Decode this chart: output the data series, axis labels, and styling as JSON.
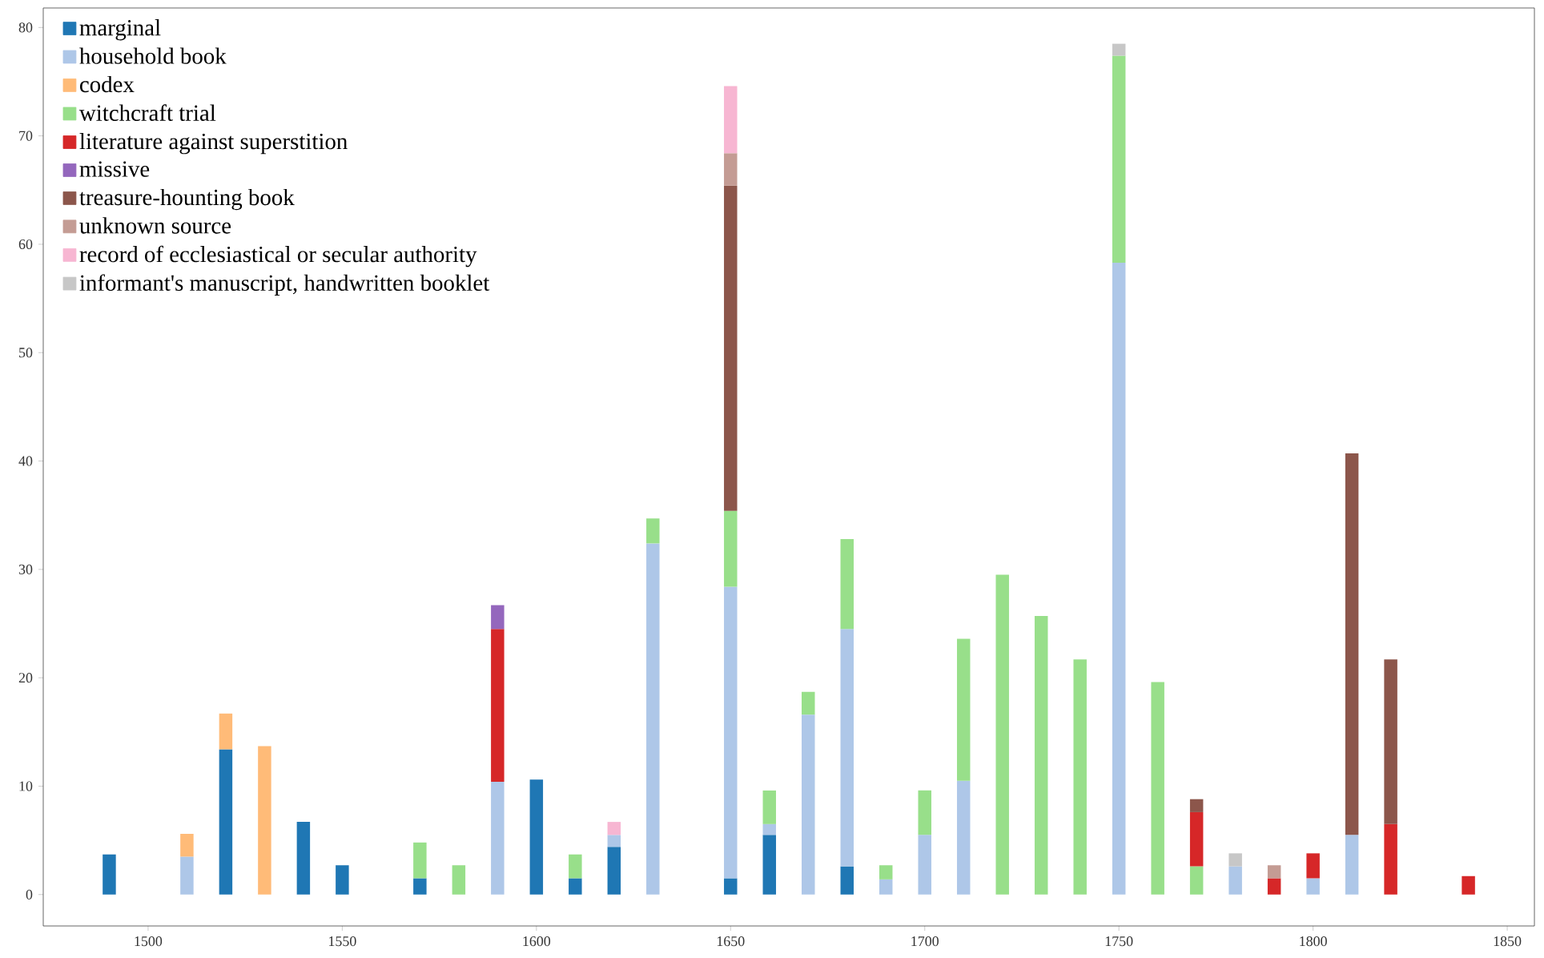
{
  "chart_data": {
    "type": "bar",
    "stacked": true,
    "legend": "top left",
    "x": [
      1490,
      1510,
      1520,
      1530,
      1540,
      1550,
      1570,
      1580,
      1590,
      1600,
      1610,
      1620,
      1630,
      1650,
      1660,
      1670,
      1680,
      1690,
      1700,
      1710,
      1720,
      1730,
      1740,
      1750,
      1760,
      1770,
      1780,
      1790,
      1800,
      1810,
      1820,
      1840
    ],
    "xlim": [
      1473,
      1857
    ],
    "xticks": [
      1500,
      1550,
      1600,
      1650,
      1700,
      1750,
      1800,
      1850
    ],
    "ylim": [
      -2.9,
      81.8
    ],
    "yticks": [
      0,
      10,
      20,
      30,
      40,
      50,
      60,
      70,
      80
    ],
    "series": [
      {
        "name": "marginal",
        "color": "#1f77b4",
        "values": [
          3.7,
          null,
          13.4,
          null,
          6.7,
          2.7,
          1.5,
          null,
          null,
          10.6,
          1.5,
          4.4,
          null,
          1.5,
          5.5,
          null,
          2.6,
          null,
          null,
          null,
          null,
          null,
          null,
          null,
          null,
          null,
          null,
          null,
          null,
          null,
          null,
          null
        ]
      },
      {
        "name": "household book",
        "color": "#aec7e8",
        "values": [
          null,
          3.5,
          null,
          null,
          null,
          null,
          null,
          null,
          10.4,
          null,
          null,
          1.1,
          32.4,
          26.9,
          1.0,
          16.6,
          21.9,
          1.4,
          5.5,
          10.5,
          null,
          null,
          null,
          58.3,
          null,
          null,
          2.6,
          null,
          1.5,
          5.5,
          null,
          null
        ]
      },
      {
        "name": "codex",
        "color": "#ffbb78",
        "values": [
          null,
          2.1,
          3.3,
          13.7,
          null,
          null,
          null,
          null,
          null,
          null,
          null,
          null,
          null,
          null,
          null,
          null,
          null,
          null,
          null,
          null,
          null,
          null,
          null,
          null,
          null,
          null,
          null,
          null,
          null,
          null,
          null,
          null
        ]
      },
      {
        "name": "witchcraft trial",
        "color": "#98df8a",
        "values": [
          null,
          null,
          null,
          null,
          null,
          null,
          3.3,
          2.7,
          null,
          null,
          2.2,
          null,
          2.3,
          7.0,
          3.1,
          2.1,
          8.3,
          1.3,
          4.1,
          13.1,
          29.5,
          25.7,
          21.7,
          19.1,
          19.6,
          2.6,
          null,
          null,
          null,
          null,
          null,
          null
        ]
      },
      {
        "name": "literature against superstition",
        "color": "#d62728",
        "values": [
          null,
          null,
          null,
          null,
          null,
          null,
          null,
          null,
          14.1,
          null,
          null,
          null,
          null,
          null,
          null,
          null,
          null,
          null,
          null,
          null,
          null,
          null,
          null,
          null,
          null,
          5.0,
          null,
          1.5,
          2.3,
          null,
          6.5,
          1.7
        ]
      },
      {
        "name": "missive",
        "color": "#9467bd",
        "values": [
          null,
          null,
          null,
          null,
          null,
          null,
          null,
          null,
          2.2,
          null,
          null,
          null,
          null,
          null,
          null,
          null,
          null,
          null,
          null,
          null,
          null,
          null,
          null,
          null,
          null,
          null,
          null,
          null,
          null,
          null,
          null,
          null
        ]
      },
      {
        "name": "treasure-hounting book",
        "color": "#8c564b",
        "values": [
          null,
          null,
          null,
          null,
          null,
          null,
          null,
          null,
          null,
          null,
          null,
          null,
          null,
          30.0,
          null,
          null,
          null,
          null,
          null,
          null,
          null,
          null,
          null,
          null,
          null,
          1.2,
          null,
          null,
          null,
          35.2,
          15.2,
          null
        ]
      },
      {
        "name": "unknown source",
        "color": "#c49c94",
        "values": [
          null,
          null,
          null,
          null,
          null,
          null,
          null,
          null,
          null,
          null,
          null,
          null,
          null,
          3.0,
          null,
          null,
          null,
          null,
          null,
          null,
          null,
          null,
          null,
          null,
          null,
          null,
          null,
          1.2,
          null,
          null,
          null,
          null
        ]
      },
      {
        "name": "record of ecclesiastical or secular authority",
        "color": "#f7b6d2",
        "values": [
          null,
          null,
          null,
          null,
          null,
          null,
          null,
          null,
          null,
          null,
          null,
          1.2,
          null,
          6.2,
          null,
          null,
          null,
          null,
          null,
          null,
          null,
          null,
          null,
          null,
          null,
          null,
          null,
          null,
          null,
          null,
          null,
          null
        ]
      },
      {
        "name": "informant's manuscript, handwritten booklet",
        "color": "#c7c7c7",
        "values": [
          null,
          null,
          null,
          null,
          null,
          null,
          null,
          null,
          null,
          null,
          null,
          null,
          null,
          null,
          null,
          null,
          null,
          null,
          null,
          null,
          null,
          null,
          null,
          1.1,
          null,
          null,
          1.2,
          null,
          null,
          null,
          null,
          null
        ]
      }
    ]
  }
}
